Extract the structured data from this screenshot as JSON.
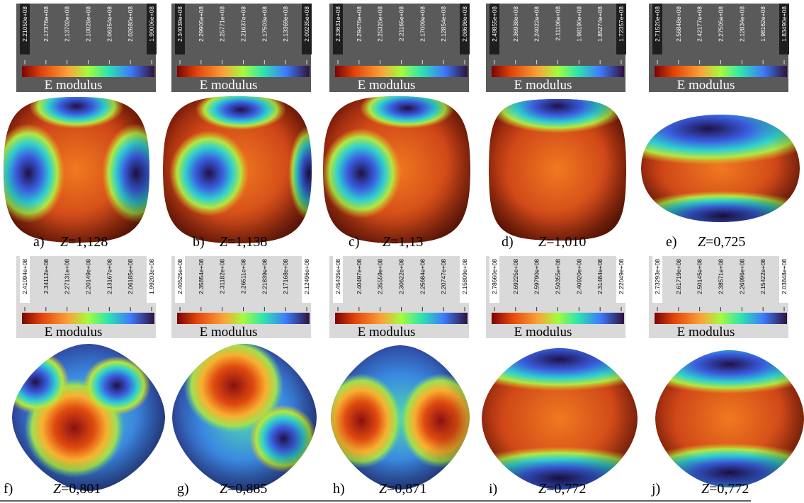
{
  "panels": [
    {
      "letter": "a)",
      "symbol": "Z",
      "value": "=1,128",
      "colorbar": {
        "label": "E modulus",
        "ticks": [
          "2.21050e+08",
          "2.17376e+08",
          "2.13702e+08",
          "2.10028e+08",
          "2.06354e+08",
          "2.02680e+08",
          "1.99006e+08"
        ]
      }
    },
    {
      "letter": "b)",
      "symbol": "Z",
      "value": "=1,138",
      "colorbar": {
        "label": "E modulus",
        "ticks": [
          "2.34039e+08",
          "2.29905e+08",
          "2.25771e+08",
          "2.21637e+08",
          "2.17503e+08",
          "2.13369e+08",
          "2.09235e+08"
        ]
      }
    },
    {
      "letter": "c)",
      "symbol": "Z",
      "value": "=1,13",
      "colorbar": {
        "label": "E modulus",
        "ticks": [
          "2.33631e+08",
          "2.29476e+08",
          "2.25320e+08",
          "2.21165e+08",
          "2.17009e+08",
          "2.12854e+08",
          "2.08698e+08"
        ]
      }
    },
    {
      "letter": "d)",
      "symbol": "Z",
      "value": "=1,010",
      "colorbar": {
        "label": "E modulus",
        "ticks": [
          "2.49855e+08",
          "2.36938e+08",
          "2.24022e+08",
          "2.11106e+08",
          "1.98190e+08",
          "1.85274e+08",
          "1.72357e+08"
        ]
      }
    },
    {
      "letter": "e)",
      "symbol": "Z",
      "value": "=0,725",
      "colorbar": {
        "label": "E modulus",
        "ticks": [
          "2.71520e+08",
          "2.56848e+08",
          "2.42177e+08",
          "2.27505e+08",
          "2.12834e+08",
          "1.98162e+08",
          "1.83490e+08"
        ]
      }
    },
    {
      "letter": "f)",
      "symbol": "Z",
      "value": "=0,801",
      "colorbar": {
        "label": "E modulus",
        "ticks": [
          "2.41094e+08",
          "2.34112e+08",
          "2.27131e+08",
          "2.20149e+08",
          "2.13167e+08",
          "2.06185e+08",
          "1.99203e+08"
        ]
      }
    },
    {
      "letter": "g)",
      "symbol": "Z",
      "value": "=0,885",
      "colorbar": {
        "label": "E modulus",
        "ticks": [
          "2.40525e+08",
          "2.35854e+08",
          "2.31182e+08",
          "2.26511e+08",
          "2.21839e+08",
          "2.17168e+08",
          "2.12496e+08"
        ]
      }
    },
    {
      "letter": "h)",
      "symbol": "Z",
      "value": "=0,871",
      "colorbar": {
        "label": "E modulus",
        "ticks": [
          "2.45435e+08",
          "2.40497e+08",
          "2.35559e+08",
          "2.30622e+08",
          "2.25684e+08",
          "2.20747e+08",
          "2.15809e+08"
        ]
      }
    },
    {
      "letter": "i)",
      "symbol": "Z",
      "value": "=0,772",
      "colorbar": {
        "label": "E modulus",
        "ticks": [
          "2.78660e+08",
          "2.69225e+08",
          "2.59790e+08",
          "2.50355e+08",
          "2.40920e+08",
          "2.31484e+08",
          "2.22049e+08"
        ]
      }
    },
    {
      "letter": "j)",
      "symbol": "Z",
      "value": "=0,772",
      "colorbar": {
        "label": "E modulus",
        "ticks": [
          "2.73293e+08",
          "2.61719e+08",
          "2.50145e+08",
          "2.38571e+08",
          "2.26996e+08",
          "2.15422e+08",
          "2.03848e+08"
        ]
      }
    }
  ]
}
